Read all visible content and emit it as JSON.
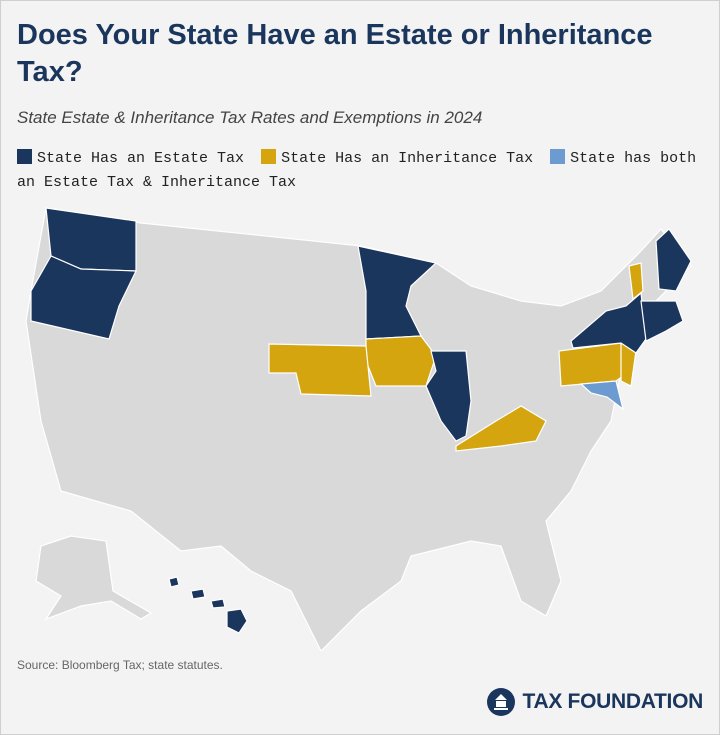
{
  "header": {
    "title": "Does Your State Have an Estate or Inheritance Tax?",
    "subtitle": "State Estate & Inheritance Tax Rates and Exemptions in 2024"
  },
  "legend": [
    {
      "label": "State Has an Estate Tax",
      "color": "#1b365d"
    },
    {
      "label": "State Has an Inheritance Tax",
      "color": "#d4a50e"
    },
    {
      "label": "State has both an Estate Tax & Inheritance Tax",
      "color": "#6b9bd1"
    }
  ],
  "map": {
    "base_color": "#d9d9d9"
  },
  "footer": {
    "source": "Source: Bloomberg Tax; state statutes.",
    "brand": "TAX FOUNDATION"
  }
}
